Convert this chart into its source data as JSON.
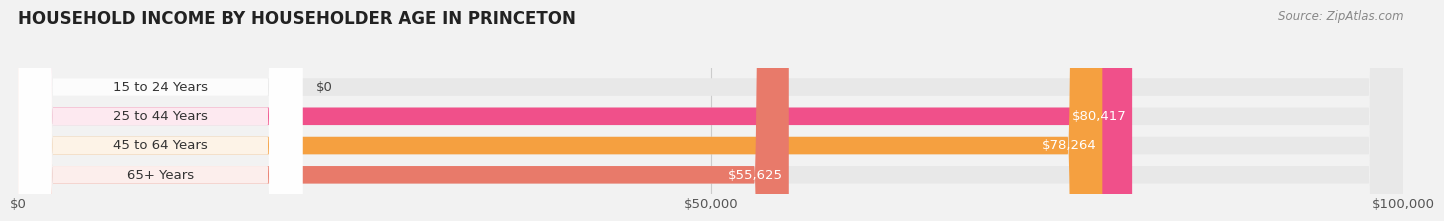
{
  "title": "HOUSEHOLD INCOME BY HOUSEHOLDER AGE IN PRINCETON",
  "source_text": "Source: ZipAtlas.com",
  "categories": [
    "15 to 24 Years",
    "25 to 44 Years",
    "45 to 64 Years",
    "65+ Years"
  ],
  "values": [
    0,
    80417,
    78264,
    55625
  ],
  "bar_colors": [
    "#b3b3e0",
    "#f0508a",
    "#f5a040",
    "#e87a6a"
  ],
  "xlim": [
    0,
    100000
  ],
  "xticks": [
    0,
    50000,
    100000
  ],
  "xtick_labels": [
    "$0",
    "$50,000",
    "$100,000"
  ],
  "value_labels": [
    "$0",
    "$80,417",
    "$78,264",
    "$55,625"
  ],
  "background_color": "#f2f2f2",
  "bar_background_color": "#e8e8e8",
  "title_fontsize": 12,
  "source_fontsize": 8.5,
  "tick_fontsize": 9.5,
  "label_fontsize": 9.5,
  "bar_height": 0.6
}
